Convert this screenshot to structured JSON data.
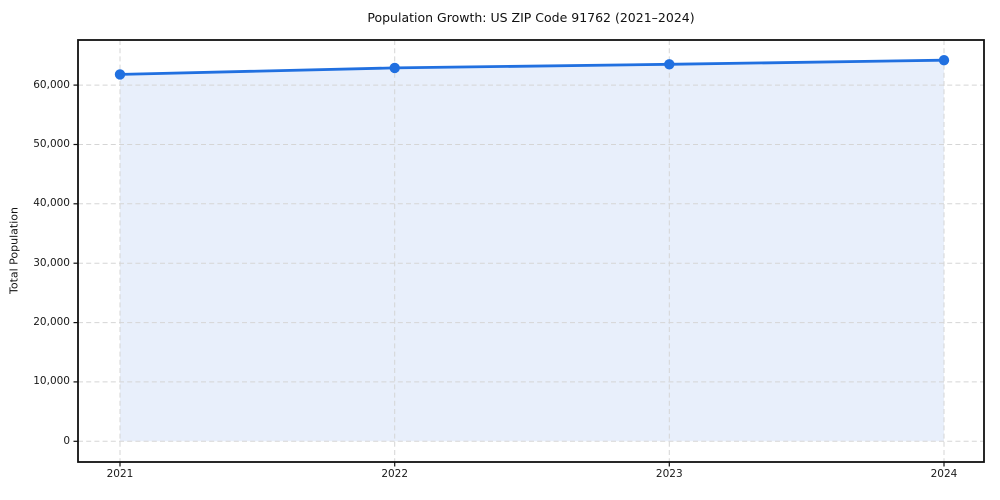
{
  "chart_data": {
    "type": "area",
    "title": "Population Growth: US ZIP Code 91762 (2021–2024)",
    "xlabel": "",
    "ylabel": "Total Population",
    "x": [
      2021,
      2022,
      2023,
      2024
    ],
    "xtick_labels": [
      "2021",
      "2022",
      "2023",
      "2024"
    ],
    "series": [
      {
        "name": "Total Population",
        "values": [
          61800,
          62900,
          63500,
          64200
        ]
      }
    ],
    "ylim": [
      0,
      67600
    ],
    "yticks": [
      0,
      10000,
      20000,
      30000,
      40000,
      50000,
      60000
    ],
    "ytick_labels": [
      "0",
      "10,000",
      "20,000",
      "30,000",
      "40,000",
      "50,000",
      "60,000"
    ],
    "grid": "dashed",
    "legend": "none",
    "colors": {
      "line": "#2170e0",
      "marker": "#2170e0",
      "fill": "#e8effb",
      "grid": "#d5d5d5",
      "spine": "#111111",
      "text": "#1a1a1a",
      "background": "#ffffff"
    }
  }
}
